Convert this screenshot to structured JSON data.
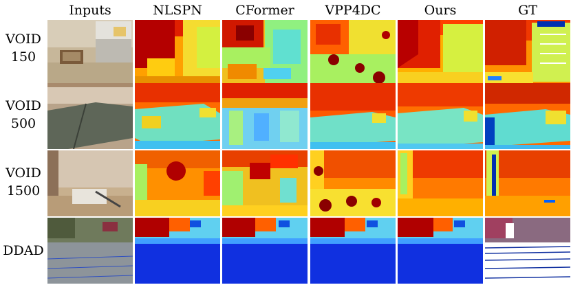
{
  "columns": [
    "Inputs",
    "NLSPN",
    "CFormer",
    "VPP4DC",
    "Ours",
    "GT"
  ],
  "rows": [
    {
      "line1": "VOID",
      "line2": "150"
    },
    {
      "line1": "VOID",
      "line2": "500"
    },
    {
      "line1": "VOID",
      "line2": "1500"
    },
    {
      "line1": "DDAD",
      "line2": ""
    }
  ]
}
